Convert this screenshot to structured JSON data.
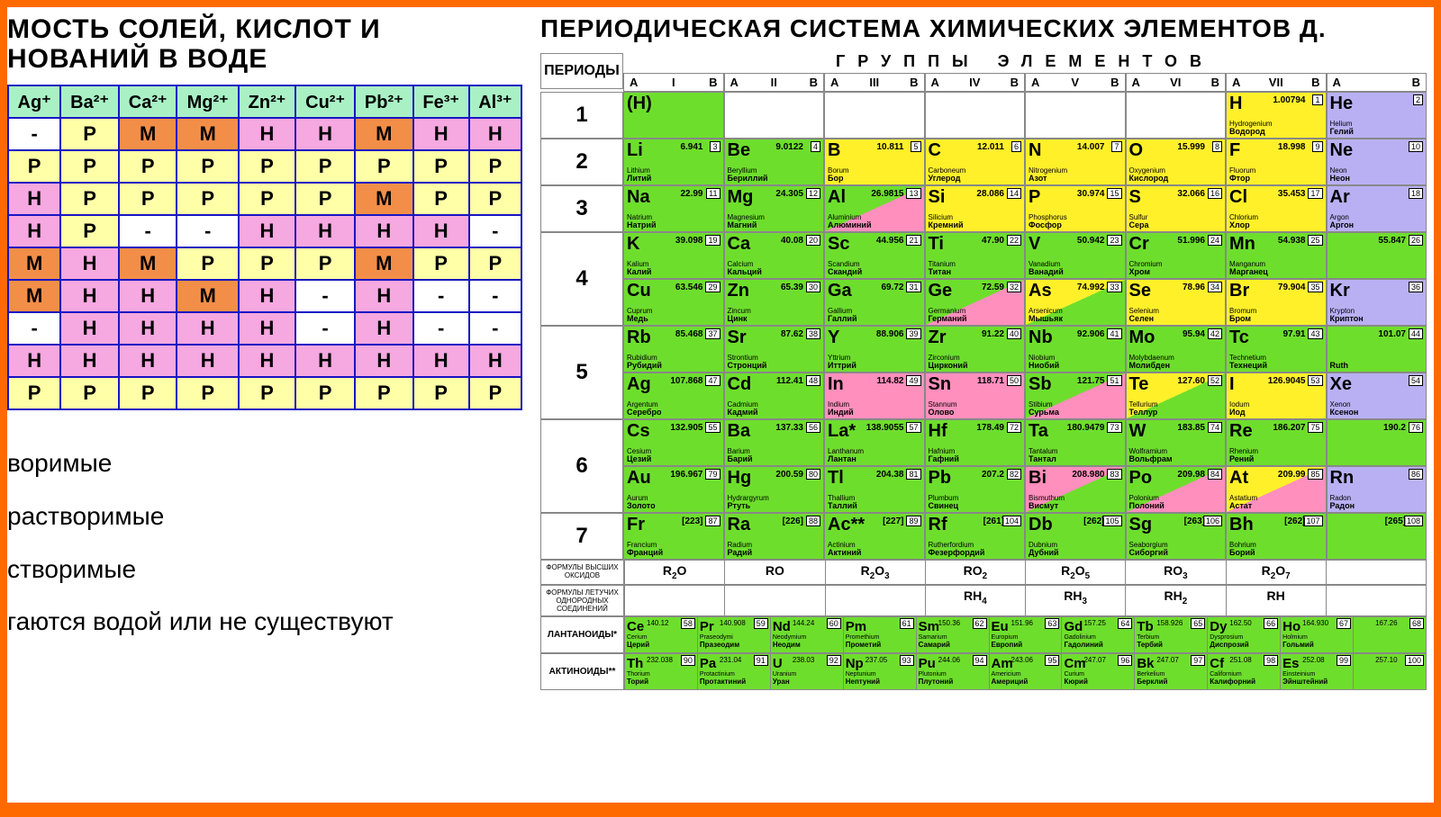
{
  "colors": {
    "orange_frame": "#ff6a00",
    "border_blue": "#1815c3",
    "border_gray": "#888888",
    "hdr_green": "#a9f1c5",
    "yellow": "#ffffa8",
    "pink": "#f6a8e0",
    "orange": "#f38e48",
    "white": "#ffffff",
    "pt_green": "#6ede2d",
    "pt_yellow": "#fff02a",
    "pt_pink": "#ff8fbd",
    "pt_violet": "#b9b0f4",
    "pt_white": "#ffffff"
  },
  "left": {
    "title": "МОСТЬ СОЛЕЙ, КИСЛОТ И\nНОВАНИЙ В ВОДЕ",
    "headers": [
      "Ag⁺",
      "Ba²⁺",
      "Ca²⁺",
      "Mg²⁺",
      "Zn²⁺",
      "Cu²⁺",
      "Pb²⁺",
      "Fe³⁺",
      "Al³⁺"
    ],
    "rows": [
      [
        [
          "-",
          "w"
        ],
        [
          "Р",
          "y"
        ],
        [
          "М",
          "o"
        ],
        [
          "М",
          "o"
        ],
        [
          "Н",
          "p"
        ],
        [
          "Н",
          "p"
        ],
        [
          "М",
          "o"
        ],
        [
          "Н",
          "p"
        ],
        [
          "Н",
          "p"
        ]
      ],
      [
        [
          "Р",
          "y"
        ],
        [
          "Р",
          "y"
        ],
        [
          "Р",
          "y"
        ],
        [
          "Р",
          "y"
        ],
        [
          "Р",
          "y"
        ],
        [
          "Р",
          "y"
        ],
        [
          "Р",
          "y"
        ],
        [
          "Р",
          "y"
        ],
        [
          "Р",
          "y"
        ]
      ],
      [
        [
          "Н",
          "p"
        ],
        [
          "Р",
          "y"
        ],
        [
          "Р",
          "y"
        ],
        [
          "Р",
          "y"
        ],
        [
          "Р",
          "y"
        ],
        [
          "Р",
          "y"
        ],
        [
          "М",
          "o"
        ],
        [
          "Р",
          "y"
        ],
        [
          "Р",
          "y"
        ]
      ],
      [
        [
          "Н",
          "p"
        ],
        [
          "Р",
          "y"
        ],
        [
          "-",
          "w"
        ],
        [
          "-",
          "w"
        ],
        [
          "Н",
          "p"
        ],
        [
          "Н",
          "p"
        ],
        [
          "Н",
          "p"
        ],
        [
          "Н",
          "p"
        ],
        [
          "-",
          "w"
        ]
      ],
      [
        [
          "М",
          "o"
        ],
        [
          "Н",
          "p"
        ],
        [
          "М",
          "o"
        ],
        [
          "Р",
          "y"
        ],
        [
          "Р",
          "y"
        ],
        [
          "Р",
          "y"
        ],
        [
          "М",
          "o"
        ],
        [
          "Р",
          "y"
        ],
        [
          "Р",
          "y"
        ]
      ],
      [
        [
          "М",
          "o"
        ],
        [
          "Н",
          "p"
        ],
        [
          "Н",
          "p"
        ],
        [
          "М",
          "o"
        ],
        [
          "Н",
          "p"
        ],
        [
          "-",
          "w"
        ],
        [
          "Н",
          "p"
        ],
        [
          "-",
          "w"
        ],
        [
          "-",
          "w"
        ]
      ],
      [
        [
          "-",
          "w"
        ],
        [
          "Н",
          "p"
        ],
        [
          "Н",
          "p"
        ],
        [
          "Н",
          "p"
        ],
        [
          "Н",
          "p"
        ],
        [
          "-",
          "w"
        ],
        [
          "Н",
          "p"
        ],
        [
          "-",
          "w"
        ],
        [
          "-",
          "w"
        ]
      ],
      [
        [
          "Н",
          "p"
        ],
        [
          "Н",
          "p"
        ],
        [
          "Н",
          "p"
        ],
        [
          "Н",
          "p"
        ],
        [
          "Н",
          "p"
        ],
        [
          "Н",
          "p"
        ],
        [
          "Н",
          "p"
        ],
        [
          "Н",
          "p"
        ],
        [
          "Н",
          "p"
        ]
      ],
      [
        [
          "Р",
          "y"
        ],
        [
          "Р",
          "y"
        ],
        [
          "Р",
          "y"
        ],
        [
          "Р",
          "y"
        ],
        [
          "Р",
          "y"
        ],
        [
          "Р",
          "y"
        ],
        [
          "Р",
          "y"
        ],
        [
          "Р",
          "y"
        ],
        [
          "Р",
          "y"
        ]
      ]
    ],
    "legend": [
      "воримые",
      "растворимые",
      "створимые",
      "гаются водой или не существуют"
    ]
  },
  "right": {
    "title": "ПЕРИОДИЧЕСКАЯ СИСТЕМА ХИМИЧЕСКИХ ЭЛЕМЕНТОВ Д.",
    "periods_label": "ПЕРИОДЫ",
    "groups_title": "ГРУППЫ ЭЛЕМЕНТОВ",
    "group_cols": [
      "I",
      "II",
      "III",
      "IV",
      "V",
      "VI",
      "VII",
      ""
    ],
    "period_heights": [
      52,
      52,
      52,
      104,
      104,
      104,
      52
    ],
    "period_labels": [
      "1",
      "2",
      "3",
      "4",
      "5",
      "6",
      "7"
    ],
    "grid": [
      [
        [
          "(H)",
          "",
          "",
          "",
          "g"
        ],
        null,
        null,
        null,
        null,
        null,
        [
          "H",
          "1",
          "1.00794",
          "Hydrogenium|Водород",
          "y"
        ],
        [
          "He",
          "2",
          "",
          "Helium|Гелий",
          "v"
        ]
      ],
      [
        [
          "Li",
          "3",
          "6.941",
          "Lithium|Литий",
          "g"
        ],
        [
          "Be",
          "4",
          "9.0122",
          "Beryllium|Бериллий",
          "g"
        ],
        [
          "B",
          "5",
          "10.811",
          "Borum|Бор",
          "y"
        ],
        [
          "C",
          "6",
          "12.011",
          "Carboneum|Углерод",
          "y"
        ],
        [
          "N",
          "7",
          "14.007",
          "Nitrogenium|Азот",
          "y"
        ],
        [
          "O",
          "8",
          "15.999",
          "Oxygenium|Кислород",
          "y"
        ],
        [
          "F",
          "9",
          "18.998",
          "Fluorum|Фтор",
          "y"
        ],
        [
          "Ne",
          "10",
          "",
          "Neon|Неон",
          "v"
        ]
      ],
      [
        [
          "Na",
          "11",
          "22.99",
          "Natrium|Натрий",
          "g"
        ],
        [
          "Mg",
          "12",
          "24.305",
          "Magnesium|Магний",
          "g"
        ],
        [
          "Al",
          "13",
          "26.9815",
          "Aluminium|Алюминий",
          "gp"
        ],
        [
          "Si",
          "14",
          "28.086",
          "Silicium|Кремний",
          "y"
        ],
        [
          "P",
          "15",
          "30.974",
          "Phosphorus|Фосфор",
          "y"
        ],
        [
          "S",
          "16",
          "32.066",
          "Sulfur|Сера",
          "y"
        ],
        [
          "Cl",
          "17",
          "35.453",
          "Chlorium|Хлор",
          "y"
        ],
        [
          "Ar",
          "18",
          "",
          "Argon|Аргон",
          "v"
        ]
      ],
      [
        [
          "K",
          "19",
          "39.098",
          "Kalium|Калий",
          "g"
        ],
        [
          "Ca",
          "20",
          "40.08",
          "Calcium|Кальций",
          "g"
        ],
        [
          "Sc",
          "21",
          "44.956",
          "Scandium|Скандий",
          "g"
        ],
        [
          "Ti",
          "22",
          "47.90",
          "Titanium|Титан",
          "g"
        ],
        [
          "V",
          "23",
          "50.942",
          "Vanadium|Ванадий",
          "g"
        ],
        [
          "Cr",
          "24",
          "51.996",
          "Chromium|Хром",
          "g"
        ],
        [
          "Mn",
          "25",
          "54.938",
          "Manganum|Марганец",
          "g"
        ],
        [
          "",
          "26",
          "55.847",
          "|",
          "g"
        ]
      ],
      [
        [
          "Cu",
          "29",
          "63.546",
          "Cuprum|Медь",
          "g"
        ],
        [
          "Zn",
          "30",
          "65.39",
          "Zincum|Цинк",
          "g"
        ],
        [
          "Ga",
          "31",
          "69.72",
          "Gallium|Галлий",
          "g"
        ],
        [
          "Ge",
          "32",
          "72.59",
          "Germanium|Германий",
          "gp"
        ],
        [
          "As",
          "33",
          "74.992",
          "Arsenicum|Мышьяк",
          "yg"
        ],
        [
          "Se",
          "34",
          "78.96",
          "Selenium|Селен",
          "y"
        ],
        [
          "Br",
          "35",
          "79.904",
          "Bromum|Бром",
          "y"
        ],
        [
          "Kr",
          "36",
          "",
          "Krypton|Криптон",
          "v"
        ]
      ],
      [
        [
          "Rb",
          "37",
          "85.468",
          "Rubidium|Рубидий",
          "g"
        ],
        [
          "Sr",
          "38",
          "87.62",
          "Strontium|Стронций",
          "g"
        ],
        [
          "Y",
          "39",
          "88.906",
          "Yttrium|Иттрий",
          "g"
        ],
        [
          "Zr",
          "40",
          "91.22",
          "Zirconium|Цирконий",
          "g"
        ],
        [
          "Nb",
          "41",
          "92.906",
          "Niobium|Ниобий",
          "g"
        ],
        [
          "Mo",
          "42",
          "95.94",
          "Molybdaenum|Молибден",
          "g"
        ],
        [
          "Tc",
          "43",
          "97.91",
          "Technetium|Технеций",
          "g"
        ],
        [
          "",
          "44",
          "101.07",
          "|Ruth",
          "g"
        ]
      ],
      [
        [
          "Ag",
          "47",
          "107.868",
          "Argentum|Серебро",
          "g"
        ],
        [
          "Cd",
          "48",
          "112.41",
          "Cadmium|Кадмий",
          "g"
        ],
        [
          "In",
          "49",
          "114.82",
          "Indium|Индий",
          "p"
        ],
        [
          "Sn",
          "50",
          "118.71",
          "Stannum|Олово",
          "p"
        ],
        [
          "Sb",
          "51",
          "121.75",
          "Stibium|Сурьма",
          "gp"
        ],
        [
          "Te",
          "52",
          "127.60",
          "Tellurium|Теллур",
          "yg"
        ],
        [
          "I",
          "53",
          "126.9045",
          "Iodum|Иод",
          "y"
        ],
        [
          "Xe",
          "54",
          "",
          "Xenon|Ксенон",
          "v"
        ]
      ],
      [
        [
          "Cs",
          "55",
          "132.905",
          "Cesium|Цезий",
          "g"
        ],
        [
          "Ba",
          "56",
          "137.33",
          "Barium|Барий",
          "g"
        ],
        [
          "La*",
          "57",
          "138.9055",
          "Lanthanum|Лантан",
          "g"
        ],
        [
          "Hf",
          "72",
          "178.49",
          "Hafnium|Гафний",
          "g"
        ],
        [
          "Ta",
          "73",
          "180.9479",
          "Tantalum|Тантал",
          "g"
        ],
        [
          "W",
          "74",
          "183.85",
          "Wolframium|Вольфрам",
          "g"
        ],
        [
          "Re",
          "75",
          "186.207",
          "Rhenium|Рений",
          "g"
        ],
        [
          "",
          "76",
          "190.2",
          "|",
          "g"
        ]
      ],
      [
        [
          "Au",
          "79",
          "196.967",
          "Aurum|Золото",
          "g"
        ],
        [
          "Hg",
          "80",
          "200.59",
          "Hydrargyrum|Ртуть",
          "g"
        ],
        [
          "Tl",
          "81",
          "204.38",
          "Thallium|Таллий",
          "g"
        ],
        [
          "Pb",
          "82",
          "207.2",
          "Plumbum|Свинец",
          "g"
        ],
        [
          "Bi",
          "83",
          "208.980",
          "Bismuthum|Висмут",
          "pg"
        ],
        [
          "Po",
          "84",
          "209.98",
          "Polonium|Полоний",
          "gp"
        ],
        [
          "At",
          "85",
          "209.99",
          "Astatium|Астат",
          "yp"
        ],
        [
          "Rn",
          "86",
          "",
          "Radon|Радон",
          "v"
        ]
      ],
      [
        [
          "Fr",
          "87",
          "[223]",
          "Francium|Франций",
          "g"
        ],
        [
          "Ra",
          "88",
          "[226]",
          "Radium|Радий",
          "g"
        ],
        [
          "Ac**",
          "89",
          "[227]",
          "Actinium|Актиний",
          "g"
        ],
        [
          "Rf",
          "104",
          "[261]",
          "Rutherfordium|Фезерфордий",
          "g"
        ],
        [
          "Db",
          "105",
          "[262]",
          "Dubnium|Дубний",
          "g"
        ],
        [
          "Sg",
          "106",
          "[263]",
          "Seaborgium|Сиборгий",
          "g"
        ],
        [
          "Bh",
          "107",
          "[262]",
          "Bohrium|Борий",
          "g"
        ],
        [
          "",
          "108",
          "[265]",
          "|",
          "g"
        ]
      ]
    ],
    "oxide_label": "ФОРМУЛЫ ВЫСШИХ ОКСИДОВ",
    "oxides": [
      "R₂O",
      "RO",
      "R₂O₃",
      "RO₂",
      "R₂O₅",
      "RO₃",
      "R₂O₇",
      ""
    ],
    "hydride_label": "ФОРМУЛЫ ЛЕТУЧИХ ОДНОРОДНЫХ СОЕДИНЕНИЙ",
    "hydrides": [
      "",
      "",
      "",
      "RH₄",
      "RH₃",
      "RH₂",
      "RH",
      ""
    ],
    "lan_label": "ЛАНТАНОИДЫ*",
    "lan": [
      [
        "Ce",
        "58",
        "140.12",
        "Cerium|Церий"
      ],
      [
        "Pr",
        "59",
        "140.908",
        "Praseodymi|Празеодим"
      ],
      [
        "Nd",
        "60",
        "144.24",
        "Neodymium|Неодим"
      ],
      [
        "Pm",
        "61",
        "",
        "Promethium|Прометий"
      ],
      [
        "Sm",
        "62",
        "150.36",
        "Samarium|Самарий"
      ],
      [
        "Eu",
        "63",
        "151.96",
        "Europium|Европий"
      ],
      [
        "Gd",
        "64",
        "157.25",
        "Gadolinium|Гадолиний"
      ],
      [
        "Tb",
        "65",
        "158.926",
        "Terbium|Тербий"
      ],
      [
        "Dy",
        "66",
        "162.50",
        "Dysprosium|Диспрозий"
      ],
      [
        "Ho",
        "67",
        "164.930",
        "Holmium|Гольмий"
      ],
      [
        "",
        "68",
        "167.26",
        "|"
      ]
    ],
    "act_label": "АКТИНОИДЫ**",
    "act": [
      [
        "Th",
        "90",
        "232.038",
        "Thorium|Торий"
      ],
      [
        "Pa",
        "91",
        "231.04",
        "Protactinium|Протактиний"
      ],
      [
        "U",
        "92",
        "238.03",
        "Uranium|Уран"
      ],
      [
        "Np",
        "93",
        "237.05",
        "Neptunium|Нептуний"
      ],
      [
        "Pu",
        "94",
        "244.06",
        "Plutonium|Плутоний"
      ],
      [
        "Am",
        "95",
        "243.06",
        "Americium|Америций"
      ],
      [
        "Cm",
        "96",
        "247.07",
        "Curium|Кюрий"
      ],
      [
        "Bk",
        "97",
        "247.07",
        "Berkelium|Берклий"
      ],
      [
        "Cf",
        "98",
        "251.08",
        "Californium|Калифорний"
      ],
      [
        "Es",
        "99",
        "252.08",
        "Einsteinium|Эйнштейний"
      ],
      [
        "",
        "100",
        "257.10",
        "|"
      ]
    ]
  }
}
